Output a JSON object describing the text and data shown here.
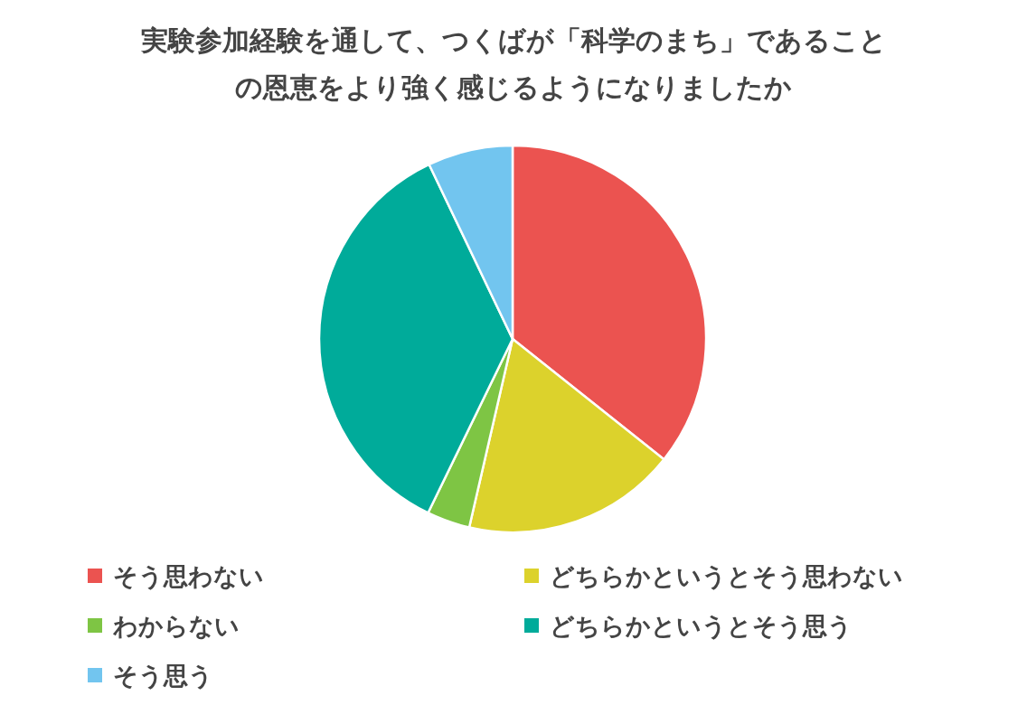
{
  "chart_data": {
    "type": "pie",
    "title": "実験参加経験を通して、つくばが「科学のまち」であることの恩恵をより強く感じるようになりましたか",
    "categories": [
      "そう思わない",
      "どちらかというとそう思わない",
      "わからない",
      "どちらかというとそう思う",
      "そう思う"
    ],
    "values": [
      35.7,
      17.9,
      3.6,
      35.7,
      7.1
    ],
    "colors": [
      "#eb5350",
      "#dcd22c",
      "#7ec544",
      "#00ab9a",
      "#72c5ef"
    ],
    "legend": "bottom"
  }
}
